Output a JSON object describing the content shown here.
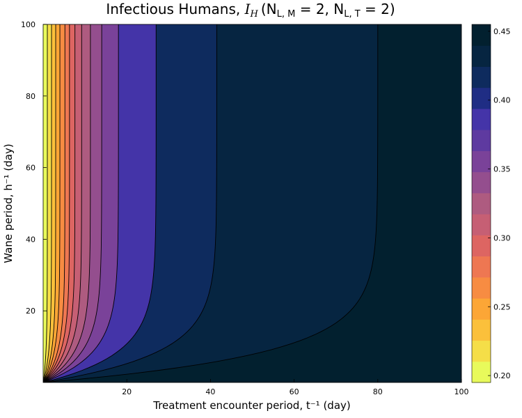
{
  "chart_data": {
    "type": "contour",
    "title": "Infectious Humans, ",
    "title_math": "I",
    "title_math_sub": "H",
    "title_params": "(N",
    "title_params_sub1": "L, M",
    "title_params_mid": " = 2, N",
    "title_params_sub2": "L, T",
    "title_params_end": " = 2)",
    "xlabel": "Treatment encounter period, t⁻¹ (day)",
    "ylabel": "Wane period, h⁻¹ (day)",
    "xlim": [
      0,
      100
    ],
    "ylim": [
      0,
      100
    ],
    "x_ticks": [
      20,
      40,
      60,
      80,
      100
    ],
    "y_ticks": [
      20,
      40,
      60,
      80,
      100
    ],
    "colorbar": {
      "min": 0.195,
      "max": 0.455,
      "ticks": [
        "0.20",
        "0.25",
        "0.30",
        "0.35",
        "0.40",
        "0.45"
      ],
      "tick_values": [
        0.2,
        0.25,
        0.3,
        0.35,
        0.4,
        0.45
      ],
      "levels": [
        0.195,
        0.215,
        0.235,
        0.255,
        0.275,
        0.295,
        0.315,
        0.335,
        0.355,
        0.375,
        0.395,
        0.415,
        0.435,
        0.455
      ],
      "colors": [
        "#e8fa5b",
        "#f5de48",
        "#fbc03b",
        "#fca636",
        "#f78c42",
        "#ee7752",
        "#dd6562",
        "#c65f74",
        "#ae5b80",
        "#944e8e",
        "#7a4299",
        "#5e3aa0",
        "#4434a8",
        "#1f2d84",
        "#0e2b5e",
        "#062541",
        "#02202f"
      ]
    },
    "contour_boundaries": [
      {
        "level": 0.2,
        "x_at_top": 1.0
      },
      {
        "level": 0.215,
        "x_at_top": 2.0
      },
      {
        "level": 0.23,
        "x_at_top": 3.0
      },
      {
        "level": 0.245,
        "x_at_top": 4.0
      },
      {
        "level": 0.26,
        "x_at_top": 5.2
      },
      {
        "level": 0.275,
        "x_at_top": 6.3
      },
      {
        "level": 0.29,
        "x_at_top": 7.6
      },
      {
        "level": 0.305,
        "x_at_top": 9.2
      },
      {
        "level": 0.32,
        "x_at_top": 11.3
      },
      {
        "level": 0.335,
        "x_at_top": 14.0
      },
      {
        "level": 0.35,
        "x_at_top": 18.0
      },
      {
        "level": 0.37,
        "x_at_top": 27.0
      },
      {
        "level": 0.39,
        "x_at_top": 41.5
      },
      {
        "level": 0.43,
        "x_at_top": 80.0
      }
    ]
  }
}
